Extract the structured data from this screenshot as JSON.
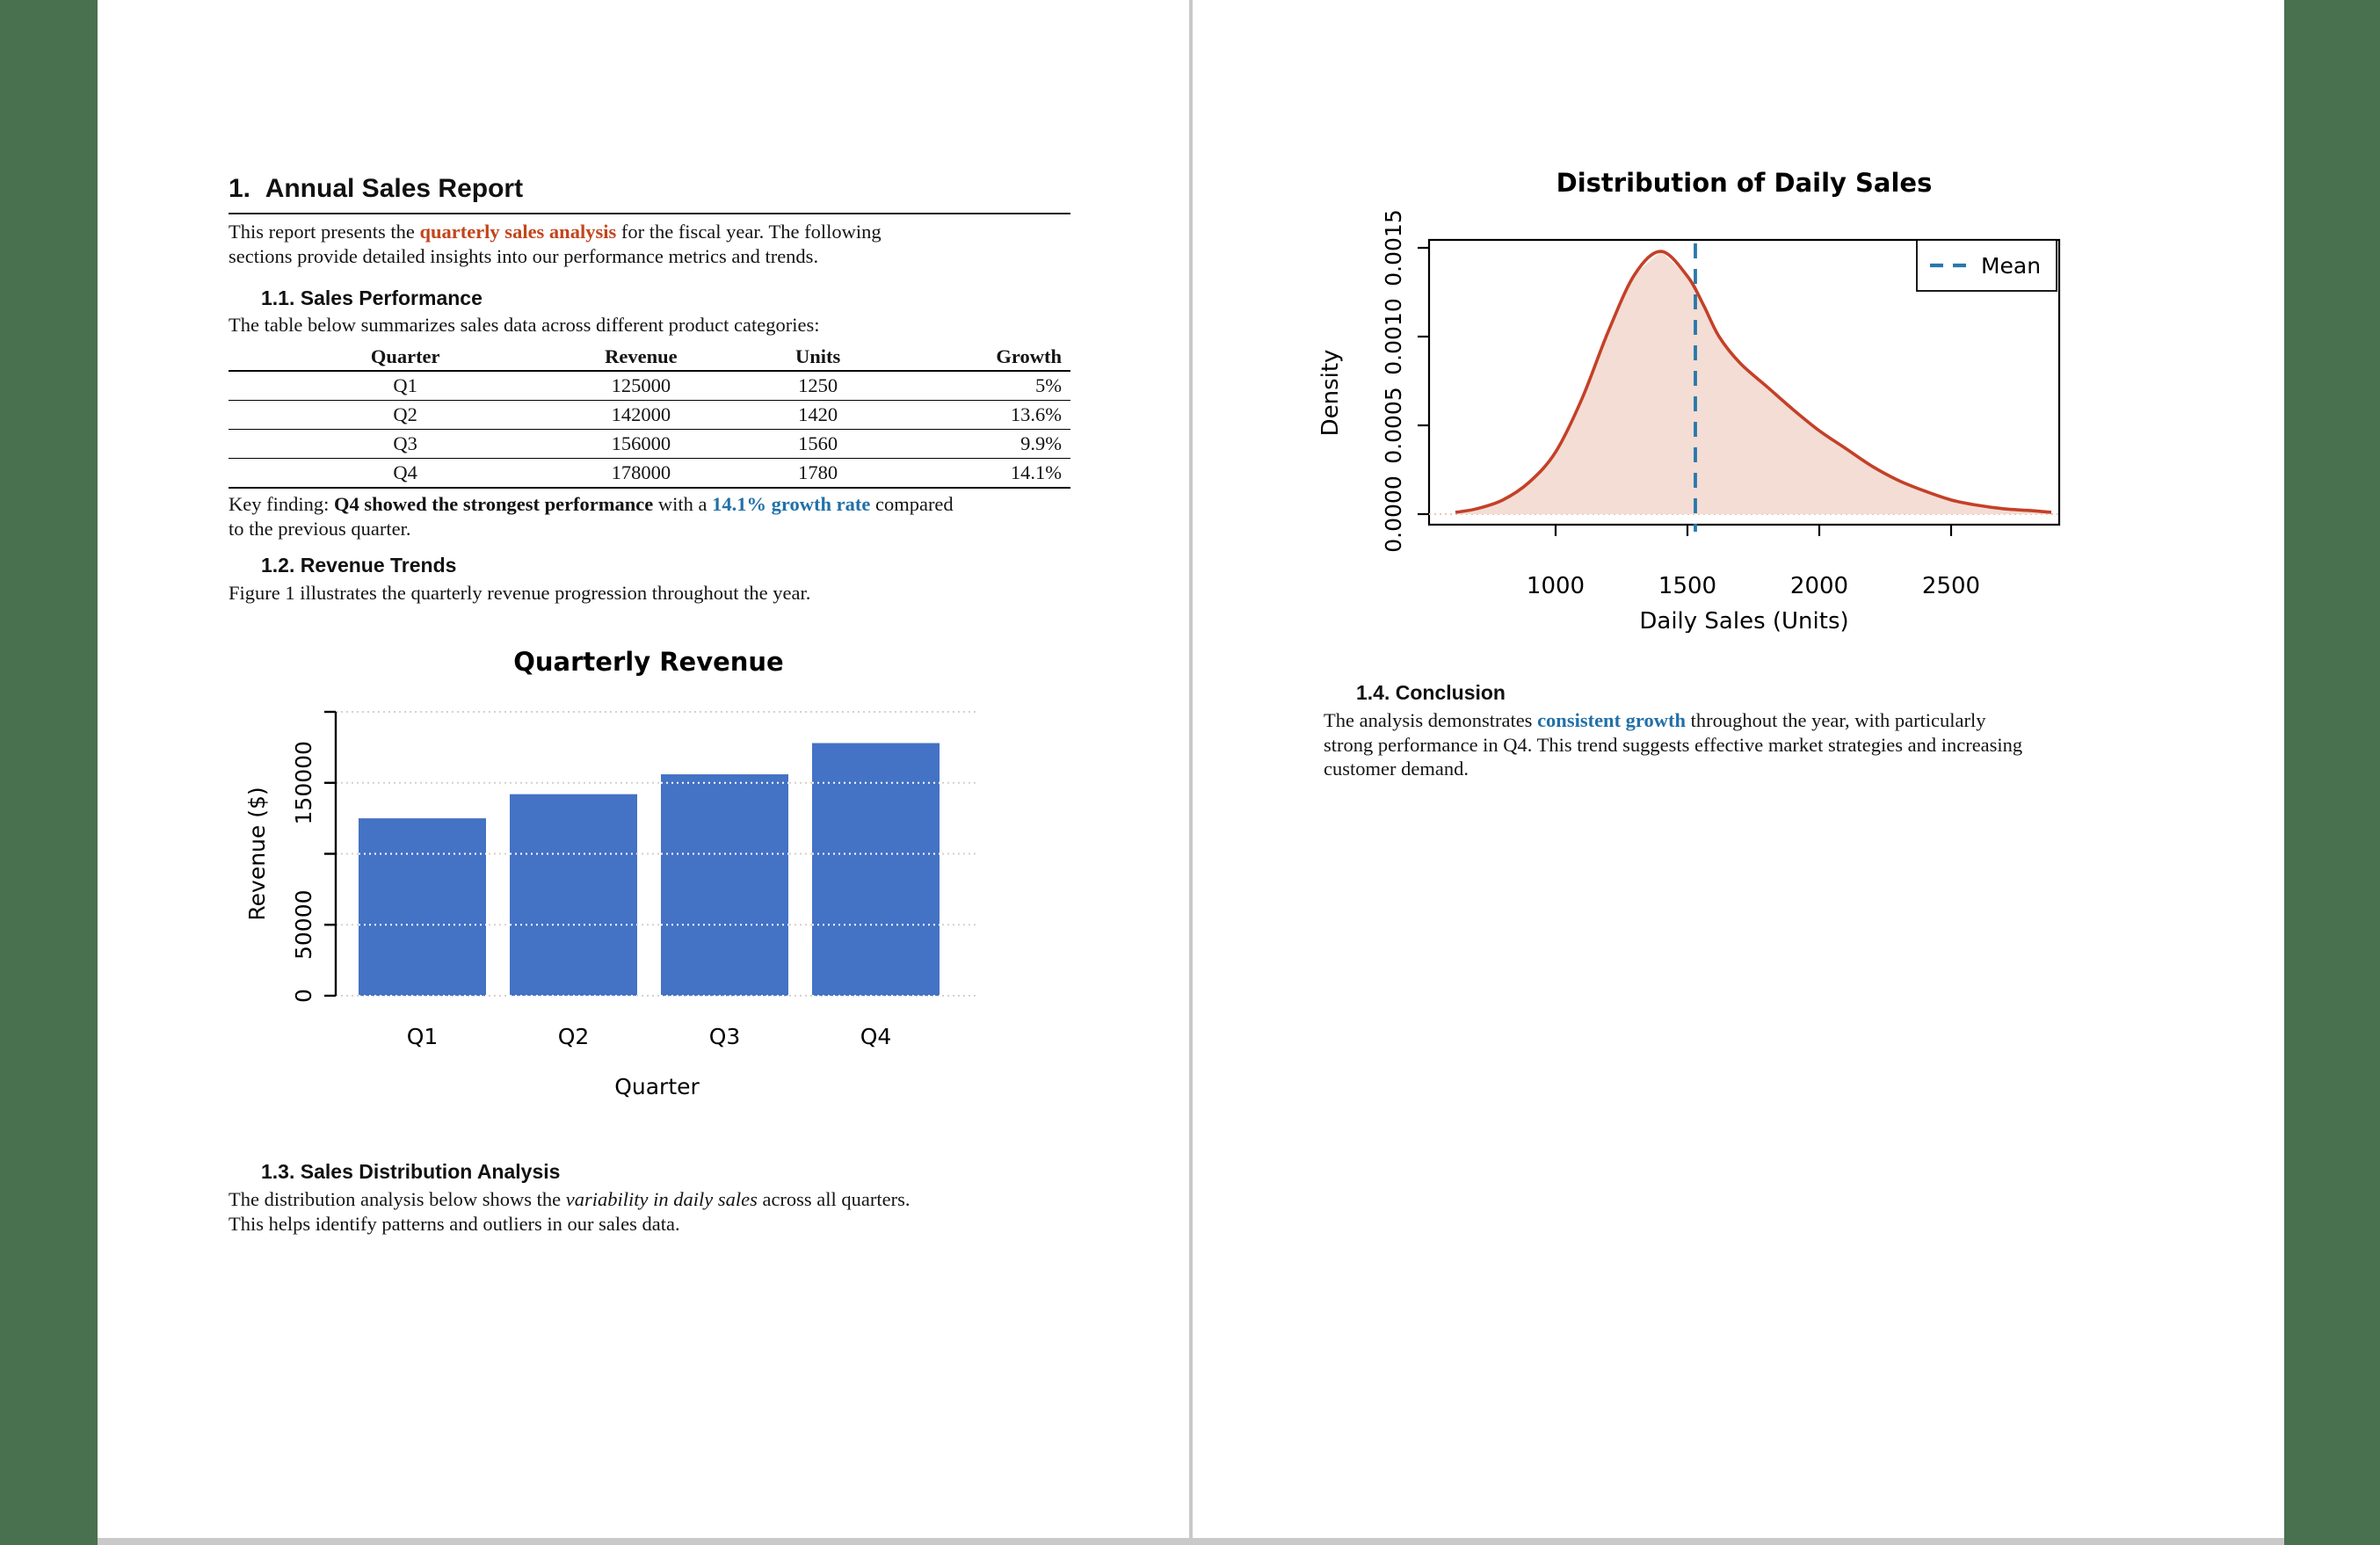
{
  "colors": {
    "background_green": "#49704f",
    "page_divider_gray": "#c9c9c9",
    "accent_red": "#c2451c",
    "accent_blue": "#2170a8"
  },
  "page1": {
    "h1": "1.  Annual Sales Report",
    "intro": {
      "pre": "This report presents the ",
      "highlight": "quarterly sales analysis",
      "post_line1": " for the fiscal year. The following",
      "post_line2": "sections provide detailed insights into our performance metrics and trends."
    },
    "s11": {
      "heading": "1.1. Sales Performance",
      "lead": "The table below summarizes sales data across different product categories:"
    },
    "table": {
      "headers": [
        "Quarter",
        "Revenue",
        "Units",
        "Growth"
      ],
      "rows": [
        [
          "Q1",
          "125000",
          "1250",
          "5%"
        ],
        [
          "Q2",
          "142000",
          "1420",
          "13.6%"
        ],
        [
          "Q3",
          "156000",
          "1560",
          "9.9%"
        ],
        [
          "Q4",
          "178000",
          "1780",
          "14.1%"
        ]
      ]
    },
    "key_finding": {
      "label": "Key finding: ",
      "strong": "Q4 showed the strongest performance",
      "mid": " with a ",
      "rate": "14.1% growth rate",
      "post_line1": " compared",
      "post_line2": "to the previous quarter."
    },
    "s12": {
      "heading": "1.2. Revenue Trends",
      "lead": "Figure 1 illustrates the quarterly revenue progression throughout the year."
    },
    "s13": {
      "heading": "1.3. Sales Distribution Analysis",
      "pre": "The distribution analysis below shows the ",
      "italic": "variability in daily sales",
      "post_line1": " across all quarters.",
      "post_line2": "This helps identify patterns and outliers in our sales data."
    }
  },
  "page2": {
    "s14": {
      "heading": "1.4. Conclusion",
      "pre": "The analysis demonstrates ",
      "strong_blue": "consistent growth",
      "post_line1": " throughout the year, with particularly",
      "post_line2": "strong performance in Q4. This trend suggests effective market strategies and increasing",
      "post_line3": "customer demand."
    }
  },
  "chart_data": [
    {
      "type": "bar",
      "title": "Quarterly Revenue",
      "xlabel": "Quarter",
      "ylabel": "Revenue ($)",
      "categories": [
        "Q1",
        "Q2",
        "Q3",
        "Q4"
      ],
      "values": [
        125000,
        142000,
        156000,
        178000
      ],
      "ylim": [
        0,
        200000
      ],
      "yticks": [
        0,
        50000,
        100000,
        150000,
        200000
      ],
      "ytick_labels": [
        "0",
        "50000",
        "",
        "150000",
        ""
      ],
      "bar_color": "#4472c4",
      "grid": "dotted-horizontal",
      "legend": "none"
    },
    {
      "type": "area",
      "title": "Distribution of Daily Sales",
      "xlabel": "Daily Sales (Units)",
      "ylabel": "Density",
      "xlim": [
        520,
        2910
      ],
      "ylim": [
        0,
        0.0016
      ],
      "xticks": [
        1000,
        1500,
        2000,
        2500
      ],
      "yticks": [
        0.0,
        0.0005,
        0.001,
        0.0015
      ],
      "ytick_labels": [
        "0.0000",
        "0.0005",
        "0.0010",
        "0.0015"
      ],
      "curve_color": "#c44028",
      "fill_color": "#f3ddd4",
      "mean_line": {
        "x": 1530,
        "color": "#2878ab",
        "style": "dashed",
        "label": "Mean"
      },
      "legend": {
        "position": "top-right",
        "entries": [
          "Mean"
        ]
      },
      "curve": [
        [
          620,
          1e-05
        ],
        [
          700,
          3e-05
        ],
        [
          800,
          8e-05
        ],
        [
          900,
          0.00018
        ],
        [
          1000,
          0.00035
        ],
        [
          1100,
          0.00065
        ],
        [
          1200,
          0.00103
        ],
        [
          1300,
          0.00135
        ],
        [
          1400,
          0.00148
        ],
        [
          1500,
          0.00134
        ],
        [
          1560,
          0.00118
        ],
        [
          1620,
          0.001
        ],
        [
          1700,
          0.00085
        ],
        [
          1800,
          0.00072
        ],
        [
          1900,
          0.00059
        ],
        [
          2000,
          0.00047
        ],
        [
          2100,
          0.00037
        ],
        [
          2200,
          0.00027
        ],
        [
          2300,
          0.00019
        ],
        [
          2400,
          0.00013
        ],
        [
          2500,
          8e-05
        ],
        [
          2600,
          5e-05
        ],
        [
          2700,
          3e-05
        ],
        [
          2800,
          2e-05
        ],
        [
          2880,
          1e-05
        ]
      ]
    }
  ]
}
